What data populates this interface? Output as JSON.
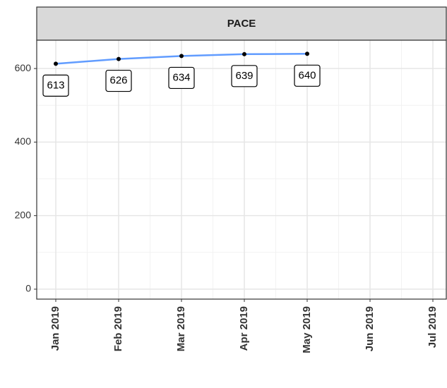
{
  "chart_data": {
    "type": "line",
    "title": "PACE",
    "categories": [
      "Jan 2019",
      "Feb 2019",
      "Mar 2019",
      "Apr 2019",
      "May 2019",
      "Jun 2019",
      "Jul 2019"
    ],
    "series": [
      {
        "color": "#619cff",
        "values": [
          613,
          626,
          634,
          639,
          640,
          null,
          null
        ]
      }
    ],
    "ylim": [
      -27,
      677
    ],
    "yticks": [
      0,
      200,
      400,
      600
    ],
    "grid": true
  }
}
